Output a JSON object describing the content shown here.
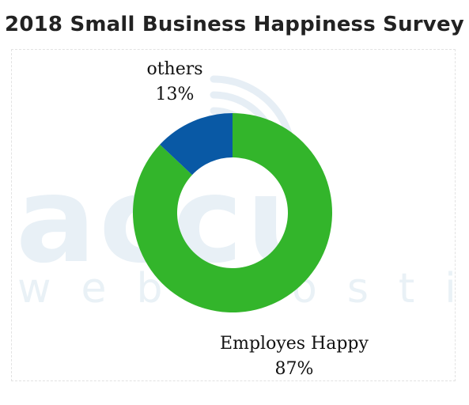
{
  "title": "2018 Small Business Happiness Survey",
  "watermark": {
    "big": "accu",
    "small": "web hosting"
  },
  "chart_data": {
    "type": "pie",
    "style": "donut",
    "categories": [
      "Employes Happy",
      "others"
    ],
    "values": [
      87,
      13
    ],
    "value_labels": [
      "87%",
      "13%"
    ],
    "colors": [
      "#33b52b",
      "#0959a5"
    ],
    "legend": "none"
  }
}
